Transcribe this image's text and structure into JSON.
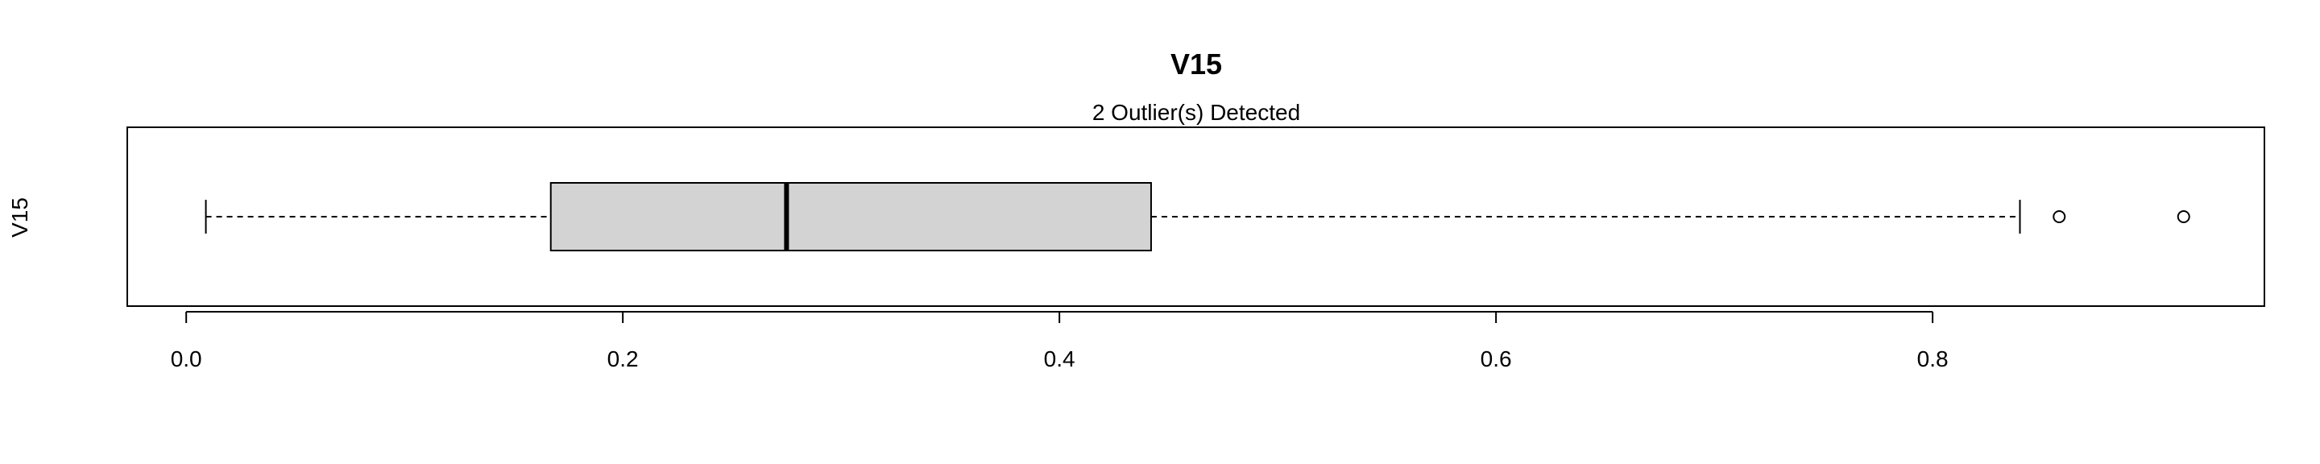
{
  "chart_data": {
    "type": "boxplot",
    "orientation": "horizontal",
    "title": "V15",
    "subtitle": "2 Outlier(s) Detected",
    "ylabel": "V15",
    "xlabel": "",
    "xlim": [
      -0.027,
      0.952
    ],
    "x_ticks": [
      0.0,
      0.2,
      0.4,
      0.6,
      0.8
    ],
    "x_tick_labels": [
      "0.0",
      "0.2",
      "0.4",
      "0.6",
      "0.8"
    ],
    "box": {
      "whisker_low": 0.009,
      "q1": 0.167,
      "median": 0.275,
      "q3": 0.442,
      "whisker_high": 0.84
    },
    "outliers": [
      0.858,
      0.915
    ],
    "box_fill": "#d3d3d3",
    "line_color": "#000000",
    "grid": false
  }
}
